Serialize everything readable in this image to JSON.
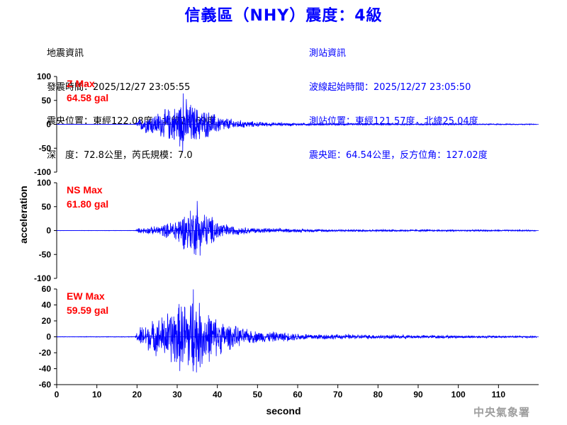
{
  "title": "信義區（NHY）震度：4級",
  "quake_info": {
    "heading": "地震資訊",
    "origin_time": "發震時間：2025/12/27 23:05:55",
    "epicenter": "震央位置：東經122.08度，北緯24.69度",
    "depth_magnitude": "深　度：72.8公里，芮氏規模：7.0"
  },
  "station_info": {
    "heading": "測站資訊",
    "wave_start": "波線起始時間：2025/12/27 23:05:50",
    "station_location": "測站位置：東經121.57度，北緯25.04度",
    "distance_azimuth": "震央距：64.54公里，反方位角：127.02度"
  },
  "footer": "中央氣象署",
  "colors": {
    "title": "#0000ff",
    "trace": "#0000ff",
    "max_label": "#ff0000"
  },
  "chart_data": {
    "type": "line",
    "xlabel": "second",
    "ylabel": "acceleration",
    "xlim": [
      0,
      120
    ],
    "x_ticks": [
      0,
      10,
      20,
      30,
      40,
      50,
      60,
      70,
      80,
      90,
      100,
      110
    ],
    "grid": false,
    "panels": [
      {
        "name": "Z",
        "max_label": "Z Max",
        "max_value": "64.58 gal",
        "ylim": [
          -100,
          100
        ],
        "y_ticks": [
          -100,
          -50,
          0,
          50,
          100
        ],
        "envelope": [
          [
            0,
            0.2
          ],
          [
            19.5,
            0.3
          ],
          [
            20.5,
            12
          ],
          [
            22,
            20
          ],
          [
            25,
            28
          ],
          [
            28,
            38
          ],
          [
            30,
            45
          ],
          [
            31.5,
            64.58
          ],
          [
            33,
            52
          ],
          [
            35,
            40
          ],
          [
            38,
            30
          ],
          [
            41,
            18
          ],
          [
            45,
            10
          ],
          [
            50,
            6
          ],
          [
            55,
            4
          ],
          [
            60,
            3
          ],
          [
            70,
            2.5
          ],
          [
            80,
            2
          ],
          [
            100,
            1.5
          ],
          [
            119,
            1.2
          ]
        ]
      },
      {
        "name": "NS",
        "max_label": "NS Max",
        "max_value": "61.80 gal",
        "ylim": [
          -100,
          100
        ],
        "y_ticks": [
          -100,
          -50,
          0,
          50,
          100
        ],
        "envelope": [
          [
            0,
            0.3
          ],
          [
            19.5,
            0.5
          ],
          [
            20.5,
            6
          ],
          [
            24,
            9
          ],
          [
            28,
            18
          ],
          [
            31,
            38
          ],
          [
            33,
            50
          ],
          [
            35,
            61.8
          ],
          [
            37,
            42
          ],
          [
            40,
            26
          ],
          [
            43,
            12
          ],
          [
            48,
            7
          ],
          [
            55,
            5
          ],
          [
            60,
            4
          ],
          [
            70,
            3
          ],
          [
            80,
            2.5
          ],
          [
            100,
            2
          ],
          [
            119,
            1.5
          ]
        ]
      },
      {
        "name": "EW",
        "max_label": "EW Max",
        "max_value": "59.59 gal",
        "ylim": [
          -60,
          60
        ],
        "y_ticks": [
          -60,
          -40,
          -20,
          0,
          20,
          40,
          60
        ],
        "envelope": [
          [
            0,
            0.3
          ],
          [
            19.5,
            0.5
          ],
          [
            20.5,
            14
          ],
          [
            23,
            20
          ],
          [
            26,
            28
          ],
          [
            29,
            42
          ],
          [
            32,
            52
          ],
          [
            34,
            59.59
          ],
          [
            36,
            44
          ],
          [
            39,
            30
          ],
          [
            42,
            20
          ],
          [
            46,
            12
          ],
          [
            50,
            8
          ],
          [
            55,
            7
          ],
          [
            60,
            5
          ],
          [
            70,
            3.5
          ],
          [
            80,
            3
          ],
          [
            100,
            2
          ],
          [
            119,
            1.5
          ]
        ]
      }
    ]
  }
}
